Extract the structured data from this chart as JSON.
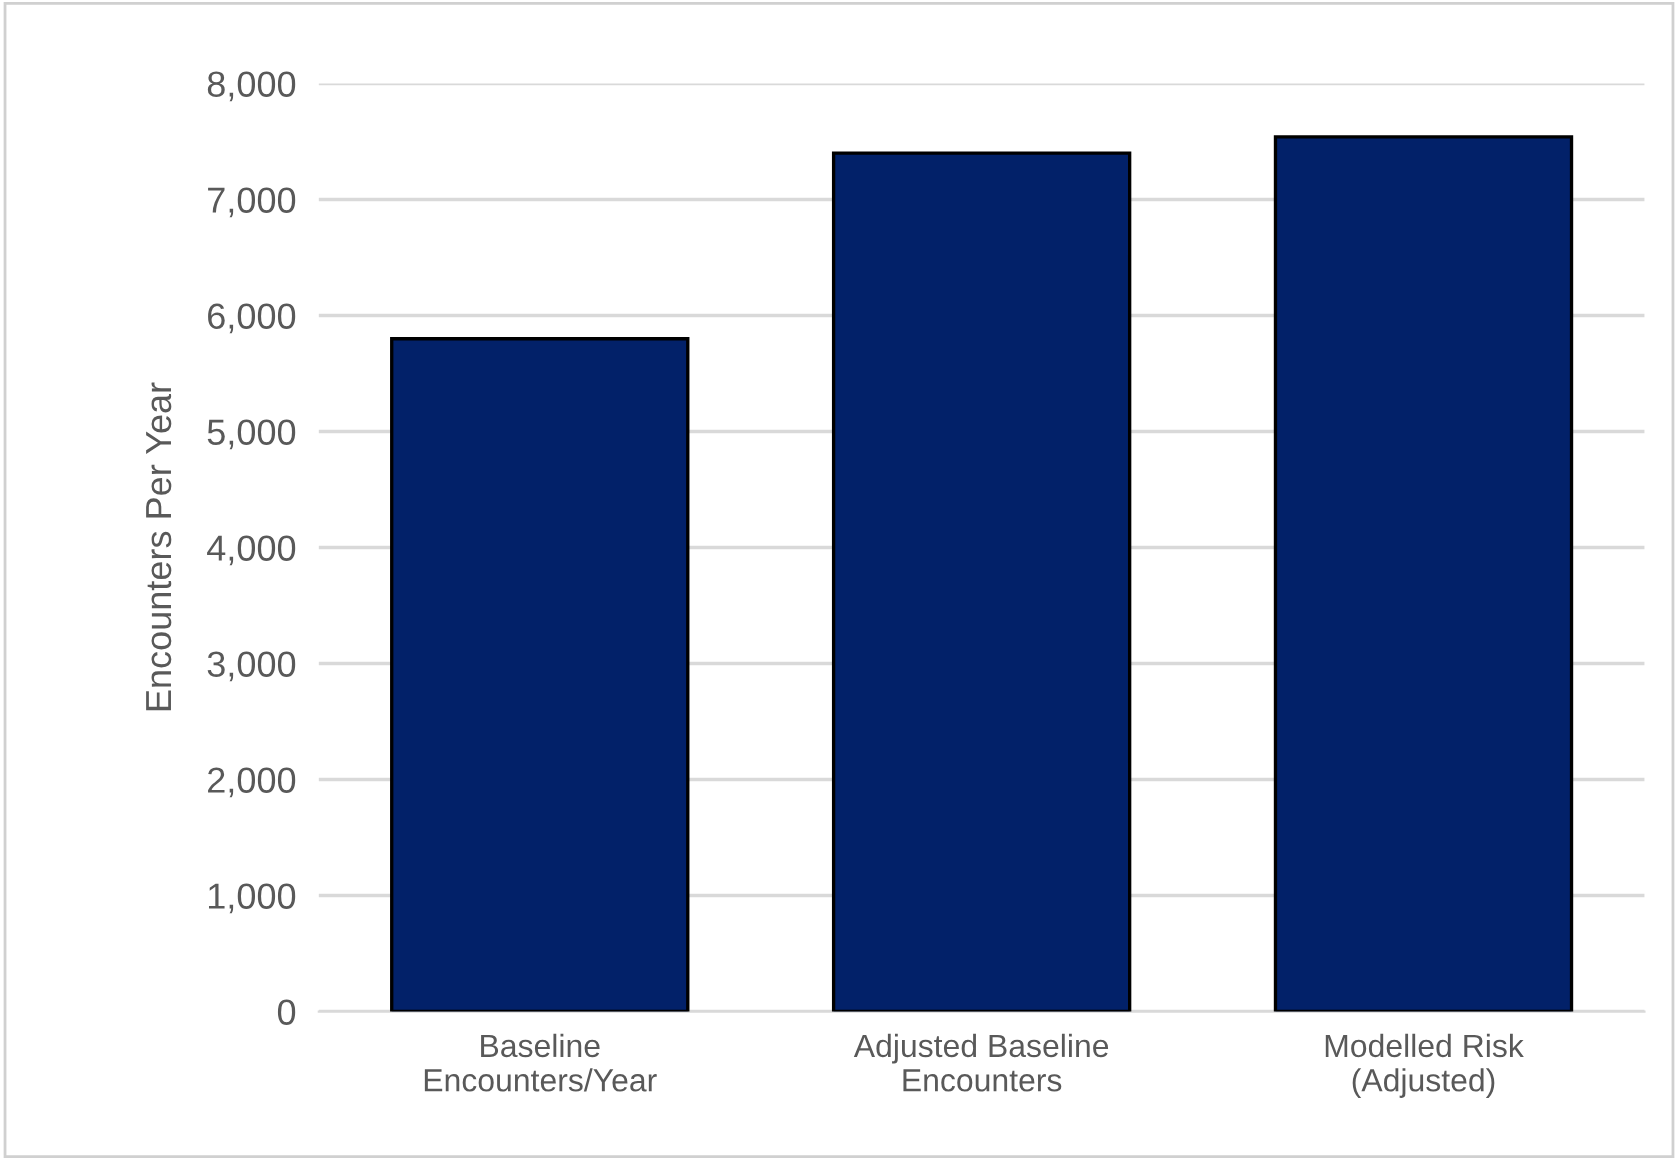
{
  "chart_data": {
    "type": "bar",
    "ylabel": "Encounters Per Year",
    "categories": [
      "Baseline\nEncounters/Year",
      "Adjusted Baseline\nEncounters",
      "Modelled Risk\n(Adjusted)"
    ],
    "values": [
      5800,
      7400,
      7540
    ],
    "color": "#022169",
    "ylim": [
      0,
      8000
    ],
    "yticks": [
      {
        "value": 0,
        "label": "0"
      },
      {
        "value": 1000,
        "label": "1,000"
      },
      {
        "value": 2000,
        "label": "2,000"
      },
      {
        "value": 3000,
        "label": "3,000"
      },
      {
        "value": 4000,
        "label": "4,000"
      },
      {
        "value": 5000,
        "label": "5,000"
      },
      {
        "value": 6000,
        "label": "6,000"
      },
      {
        "value": 7000,
        "label": "7,000"
      },
      {
        "value": 8000,
        "label": "8,000"
      }
    ],
    "grid": "y"
  }
}
